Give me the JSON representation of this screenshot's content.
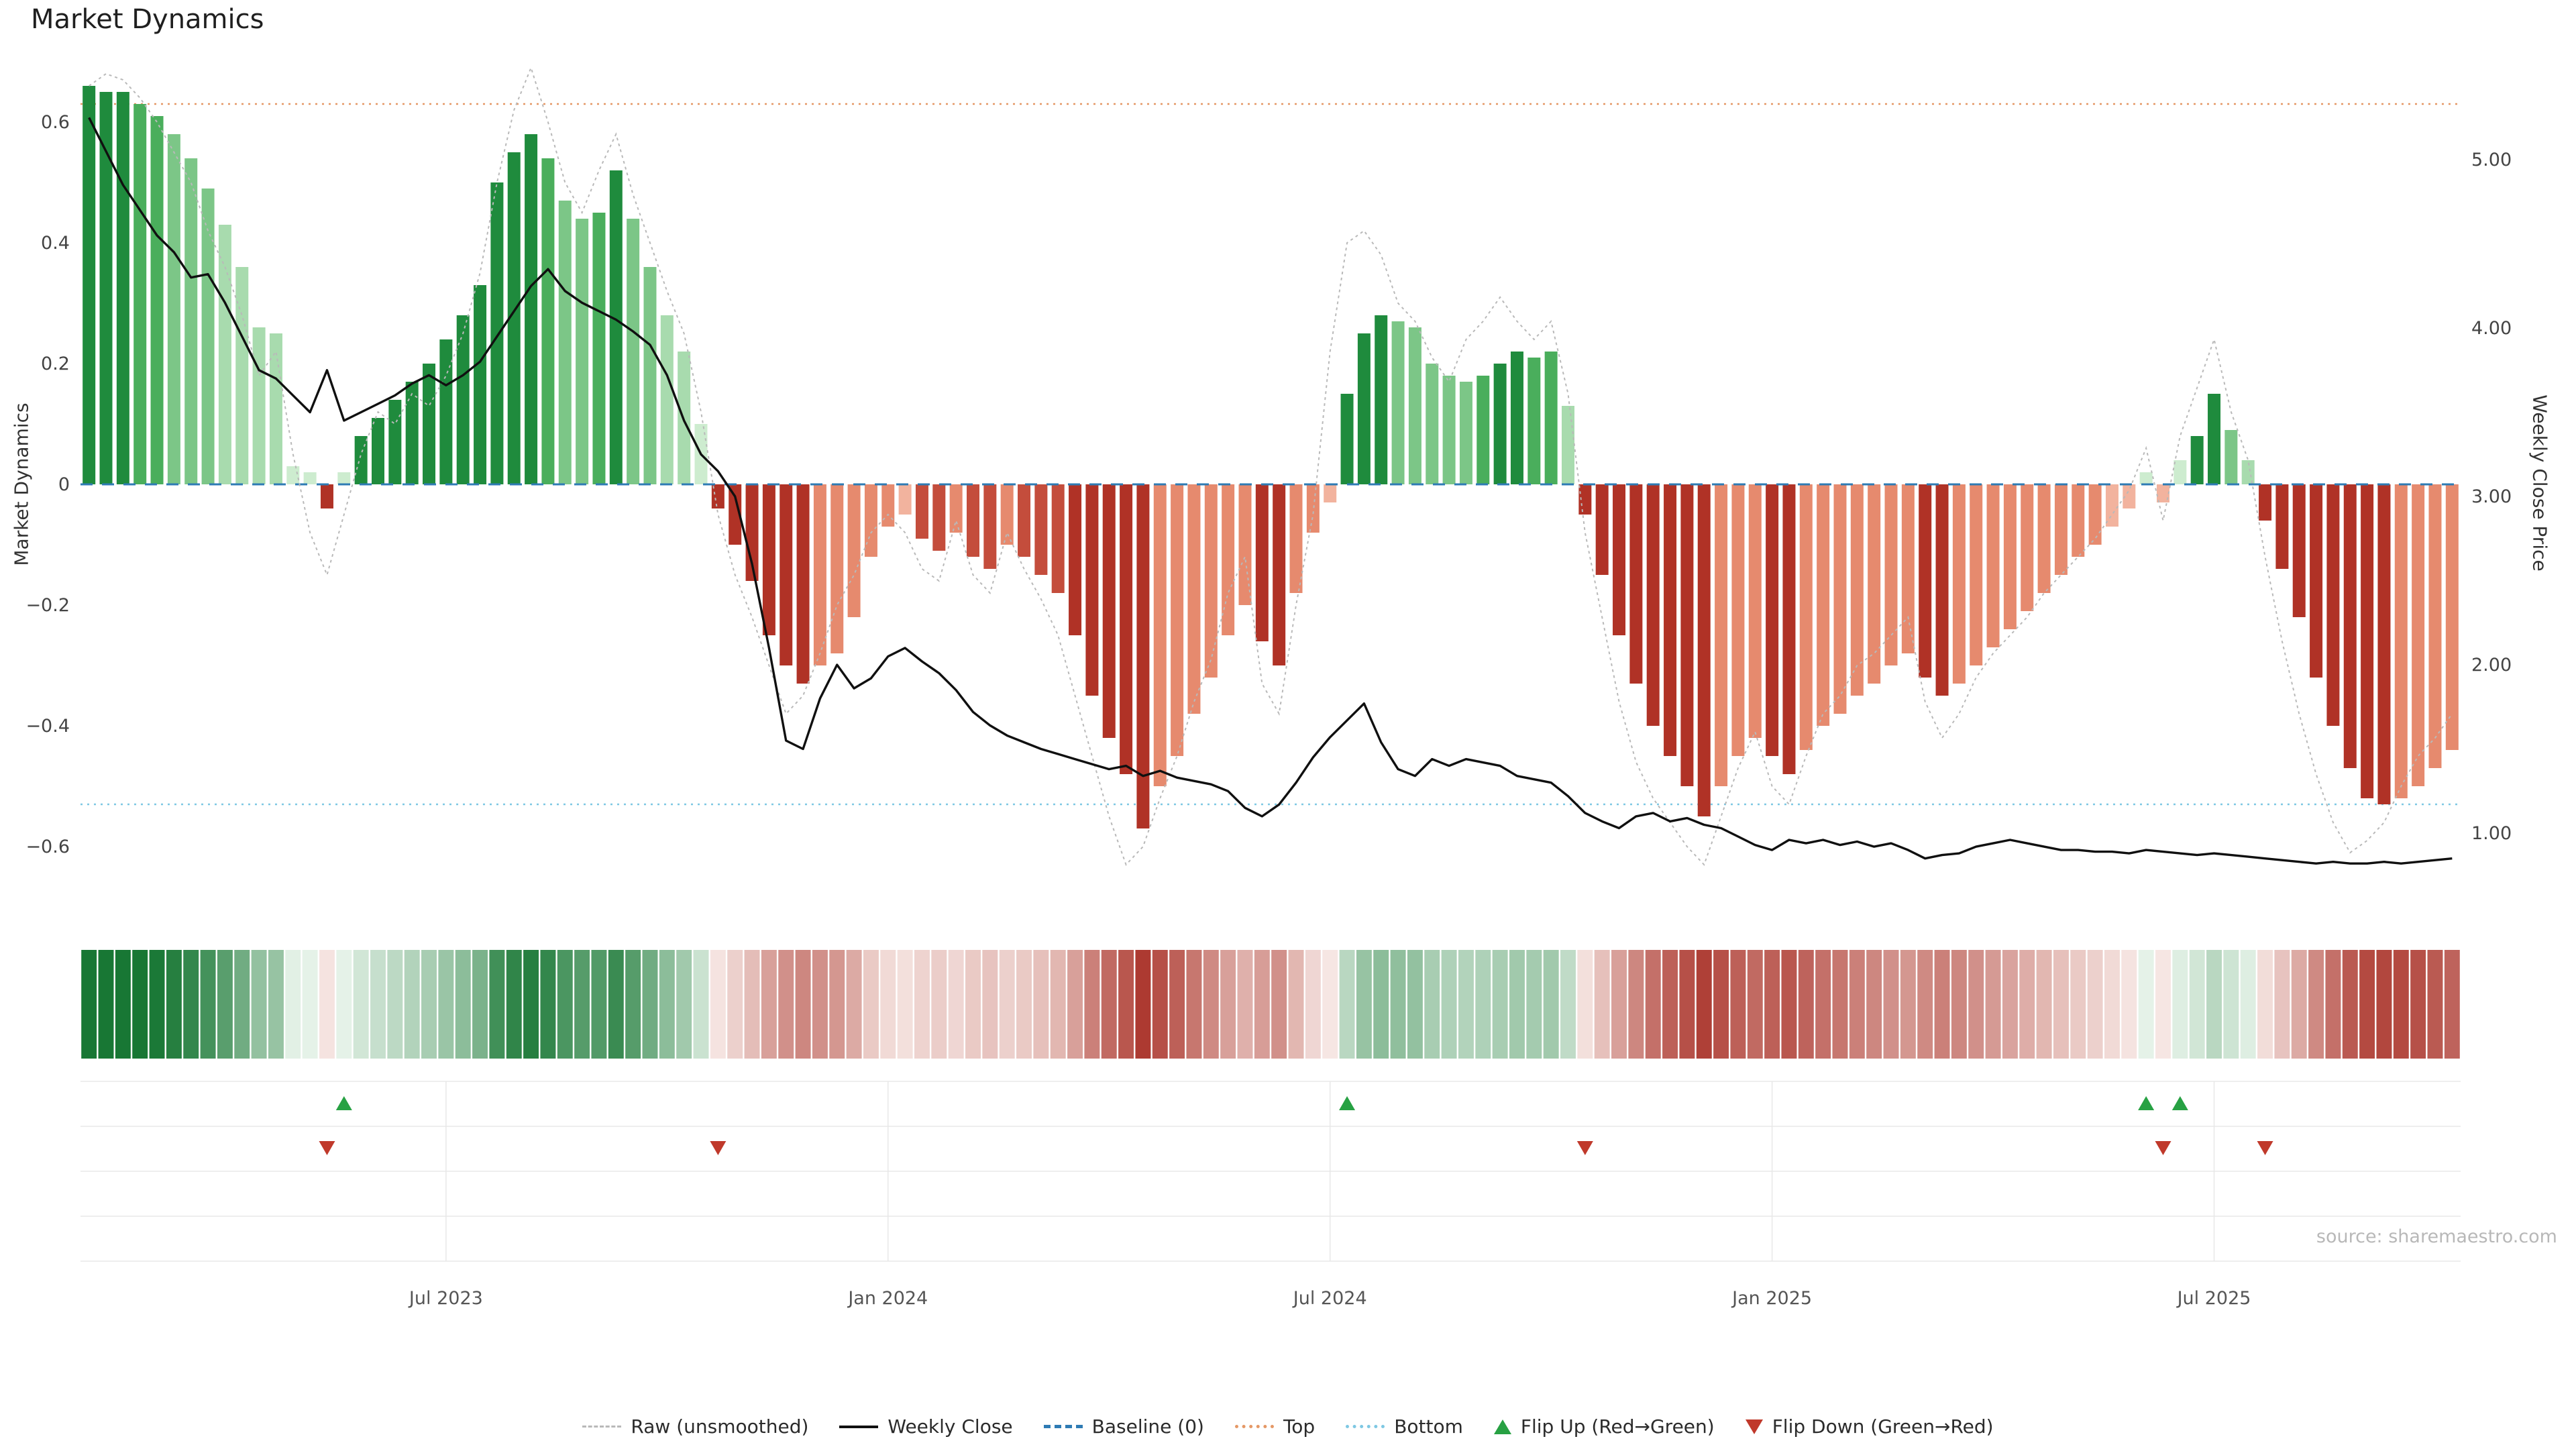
{
  "title": "Market Dynamics",
  "source": "source: sharemaestro.com",
  "axes": {
    "left_label": "Market Dynamics",
    "right_label": "Weekly Close Price",
    "left_ticks": [
      "0.6",
      "0.4",
      "0.2",
      "0",
      "−0.2",
      "−0.4",
      "−0.6"
    ],
    "left_tick_values": [
      0.6,
      0.4,
      0.2,
      0,
      -0.2,
      -0.4,
      -0.6
    ],
    "right_ticks": [
      "5.00",
      "4.00",
      "3.00",
      "2.00",
      "1.00"
    ],
    "right_tick_values": [
      5,
      4,
      3,
      2,
      1
    ],
    "x_tick_labels": [
      "Jul 2023",
      "Jan 2024",
      "Jul 2024",
      "Jan 2025",
      "Jul 2025"
    ],
    "x_tick_indices": [
      21,
      47,
      73,
      99,
      125
    ]
  },
  "colors": {
    "palette": {
      "G1": "#1f8b3d",
      "G2": "#4aae5c",
      "G3": "#7cc687",
      "G4": "#a8dbae",
      "G5": "#cdeccf",
      "R1": "#b03226",
      "R2": "#c44d3c",
      "R3": "#e68a6e",
      "R4": "#f2b39e"
    },
    "baseline": "#2e7bb4",
    "top_line": "#e59866",
    "bottom_line": "#7ec8e3",
    "raw_line": "#b9b9b9",
    "close_line": "#101010",
    "flip_up": "#27a143",
    "flip_down": "#c0392b",
    "grid": "#e8e8e8",
    "tick_text": "#444444",
    "source_text": "#b8b8b8"
  },
  "chart_data": {
    "type": "bar",
    "subtype": "weekly oscillator bars + weekly close price line + raw line + heatmap strip + flip markers",
    "freq": "weekly",
    "start_date": "2023-02-06",
    "n_points": 140,
    "ylim_left": [
      -0.68,
      0.68
    ],
    "ylim_right": [
      0.63,
      5.51
    ],
    "reference_lines": {
      "baseline": 0,
      "top": 0.63,
      "bottom": -0.53
    },
    "bar_values": [
      0.66,
      0.65,
      0.65,
      0.63,
      0.61,
      0.58,
      0.54,
      0.49,
      0.43,
      0.36,
      0.26,
      0.25,
      0.03,
      0.02,
      -0.04,
      0.02,
      0.08,
      0.11,
      0.14,
      0.17,
      0.2,
      0.24,
      0.28,
      0.33,
      0.5,
      0.55,
      0.58,
      0.54,
      0.47,
      0.44,
      0.45,
      0.52,
      0.44,
      0.36,
      0.28,
      0.22,
      0.1,
      -0.04,
      -0.1,
      -0.16,
      -0.25,
      -0.3,
      -0.33,
      -0.3,
      -0.28,
      -0.22,
      -0.12,
      -0.07,
      -0.05,
      -0.09,
      -0.11,
      -0.08,
      -0.12,
      -0.14,
      -0.1,
      -0.12,
      -0.15,
      -0.18,
      -0.25,
      -0.35,
      -0.42,
      -0.48,
      -0.57,
      -0.5,
      -0.45,
      -0.38,
      -0.32,
      -0.25,
      -0.2,
      -0.26,
      -0.3,
      -0.18,
      -0.08,
      -0.03,
      0.15,
      0.25,
      0.28,
      0.27,
      0.26,
      0.2,
      0.18,
      0.17,
      0.18,
      0.2,
      0.22,
      0.21,
      0.22,
      0.13,
      -0.05,
      -0.15,
      -0.25,
      -0.33,
      -0.4,
      -0.45,
      -0.5,
      -0.55,
      -0.5,
      -0.45,
      -0.42,
      -0.45,
      -0.48,
      -0.44,
      -0.4,
      -0.38,
      -0.35,
      -0.33,
      -0.3,
      -0.28,
      -0.32,
      -0.35,
      -0.33,
      -0.3,
      -0.27,
      -0.24,
      -0.21,
      -0.18,
      -0.15,
      -0.12,
      -0.1,
      -0.07,
      -0.04,
      0.02,
      -0.03,
      0.04,
      0.08,
      0.15,
      0.09,
      0.04,
      -0.06,
      -0.14,
      -0.22,
      -0.32,
      -0.4,
      -0.47,
      -0.52,
      -0.53,
      -0.52,
      -0.5,
      -0.47,
      -0.44
    ],
    "bar_tones": [
      "G1",
      "G1",
      "G1",
      "G2",
      "G2",
      "G3",
      "G3",
      "G3",
      "G4",
      "G4",
      "G4",
      "G4",
      "G5",
      "G5",
      "R1",
      "G5",
      "G1",
      "G1",
      "G1",
      "G1",
      "G1",
      "G1",
      "G1",
      "G1",
      "G1",
      "G1",
      "G1",
      "G2",
      "G3",
      "G3",
      "G2",
      "G1",
      "G3",
      "G3",
      "G4",
      "G4",
      "G5",
      "R1",
      "R1",
      "R1",
      "R1",
      "R1",
      "R1",
      "R3",
      "R3",
      "R3",
      "R3",
      "R3",
      "R4",
      "R2",
      "R2",
      "R3",
      "R2",
      "R2",
      "R3",
      "R2",
      "R2",
      "R2",
      "R1",
      "R1",
      "R1",
      "R1",
      "R1",
      "R3",
      "R3",
      "R3",
      "R3",
      "R3",
      "R3",
      "R1",
      "R1",
      "R3",
      "R3",
      "R4",
      "G1",
      "G1",
      "G1",
      "G3",
      "G3",
      "G3",
      "G3",
      "G3",
      "G2",
      "G1",
      "G1",
      "G2",
      "G2",
      "G4",
      "R1",
      "R1",
      "R1",
      "R1",
      "R1",
      "R1",
      "R1",
      "R1",
      "R3",
      "R3",
      "R3",
      "R1",
      "R1",
      "R3",
      "R3",
      "R3",
      "R3",
      "R3",
      "R3",
      "R3",
      "R1",
      "R1",
      "R3",
      "R3",
      "R3",
      "R3",
      "R3",
      "R3",
      "R3",
      "R3",
      "R3",
      "R4",
      "R4",
      "G5",
      "R4",
      "G5",
      "G1",
      "G1",
      "G3",
      "G4",
      "R1",
      "R1",
      "R1",
      "R1",
      "R1",
      "R1",
      "R1",
      "R1",
      "R3",
      "R3",
      "R3",
      "R3"
    ],
    "series": [
      {
        "name": "Raw (unsmoothed)",
        "axis": "left",
        "values": [
          0.66,
          0.68,
          0.67,
          0.64,
          0.6,
          0.55,
          0.5,
          0.42,
          0.36,
          0.28,
          0.18,
          0.22,
          0.05,
          -0.08,
          -0.15,
          -0.05,
          0.05,
          0.12,
          0.1,
          0.15,
          0.13,
          0.18,
          0.25,
          0.35,
          0.5,
          0.62,
          0.69,
          0.6,
          0.5,
          0.45,
          0.52,
          0.58,
          0.48,
          0.4,
          0.32,
          0.25,
          0.12,
          -0.05,
          -0.15,
          -0.22,
          -0.3,
          -0.38,
          -0.35,
          -0.28,
          -0.2,
          -0.15,
          -0.08,
          -0.05,
          -0.08,
          -0.14,
          -0.16,
          -0.06,
          -0.15,
          -0.18,
          -0.08,
          -0.14,
          -0.19,
          -0.25,
          -0.35,
          -0.45,
          -0.55,
          -0.63,
          -0.6,
          -0.52,
          -0.45,
          -0.36,
          -0.29,
          -0.18,
          -0.12,
          -0.33,
          -0.38,
          -0.2,
          -0.05,
          0.22,
          0.4,
          0.42,
          0.38,
          0.3,
          0.27,
          0.21,
          0.17,
          0.24,
          0.27,
          0.31,
          0.27,
          0.24,
          0.27,
          0.15,
          -0.08,
          -0.22,
          -0.36,
          -0.46,
          -0.52,
          -0.56,
          -0.6,
          -0.63,
          -0.55,
          -0.47,
          -0.41,
          -0.5,
          -0.53,
          -0.45,
          -0.38,
          -0.35,
          -0.3,
          -0.28,
          -0.25,
          -0.22,
          -0.36,
          -0.42,
          -0.38,
          -0.32,
          -0.28,
          -0.25,
          -0.22,
          -0.18,
          -0.15,
          -0.12,
          -0.09,
          -0.05,
          -0.01,
          0.06,
          -0.06,
          0.08,
          0.16,
          0.24,
          0.12,
          0.04,
          -0.12,
          -0.26,
          -0.38,
          -0.48,
          -0.56,
          -0.61,
          -0.59,
          -0.56,
          -0.5,
          -0.45,
          -0.42,
          -0.38
        ]
      },
      {
        "name": "Weekly Close",
        "axis": "right",
        "values": [
          5.25,
          5.05,
          4.85,
          4.7,
          4.55,
          4.45,
          4.3,
          4.32,
          4.15,
          3.95,
          3.75,
          3.7,
          3.6,
          3.5,
          3.75,
          3.45,
          3.5,
          3.55,
          3.6,
          3.67,
          3.72,
          3.66,
          3.72,
          3.8,
          3.95,
          4.1,
          4.25,
          4.35,
          4.22,
          4.15,
          4.1,
          4.05,
          3.98,
          3.9,
          3.72,
          3.45,
          3.25,
          3.15,
          3.0,
          2.6,
          2.1,
          1.55,
          1.5,
          1.8,
          2.0,
          1.86,
          1.92,
          2.05,
          2.1,
          2.02,
          1.95,
          1.85,
          1.72,
          1.64,
          1.58,
          1.54,
          1.5,
          1.47,
          1.44,
          1.41,
          1.38,
          1.4,
          1.34,
          1.37,
          1.33,
          1.31,
          1.29,
          1.25,
          1.15,
          1.1,
          1.17,
          1.3,
          1.45,
          1.57,
          1.67,
          1.77,
          1.54,
          1.38,
          1.34,
          1.44,
          1.4,
          1.44,
          1.42,
          1.4,
          1.34,
          1.32,
          1.3,
          1.22,
          1.12,
          1.07,
          1.03,
          1.1,
          1.12,
          1.07,
          1.09,
          1.05,
          1.03,
          0.98,
          0.93,
          0.9,
          0.96,
          0.94,
          0.96,
          0.93,
          0.95,
          0.92,
          0.94,
          0.9,
          0.85,
          0.87,
          0.88,
          0.92,
          0.94,
          0.96,
          0.94,
          0.92,
          0.9,
          0.9,
          0.89,
          0.89,
          0.88,
          0.9,
          0.89,
          0.88,
          0.87,
          0.88,
          0.87,
          0.86,
          0.85,
          0.84,
          0.83,
          0.82,
          0.83,
          0.82,
          0.82,
          0.83,
          0.82,
          0.83,
          0.84,
          0.85
        ]
      }
    ],
    "flip_up_indices": [
      15,
      74,
      121,
      123
    ],
    "flip_down_indices": [
      14,
      37,
      88,
      122,
      128
    ],
    "heatmap": "cell colors derived from bar_values via red-green diverging scale"
  },
  "legend": [
    {
      "label": "Raw (unsmoothed)"
    },
    {
      "label": "Weekly Close"
    },
    {
      "label": "Baseline (0)"
    },
    {
      "label": "Top"
    },
    {
      "label": "Bottom"
    },
    {
      "label": "Flip Up (Red→Green)"
    },
    {
      "label": "Flip Down (Green→Red)"
    }
  ]
}
